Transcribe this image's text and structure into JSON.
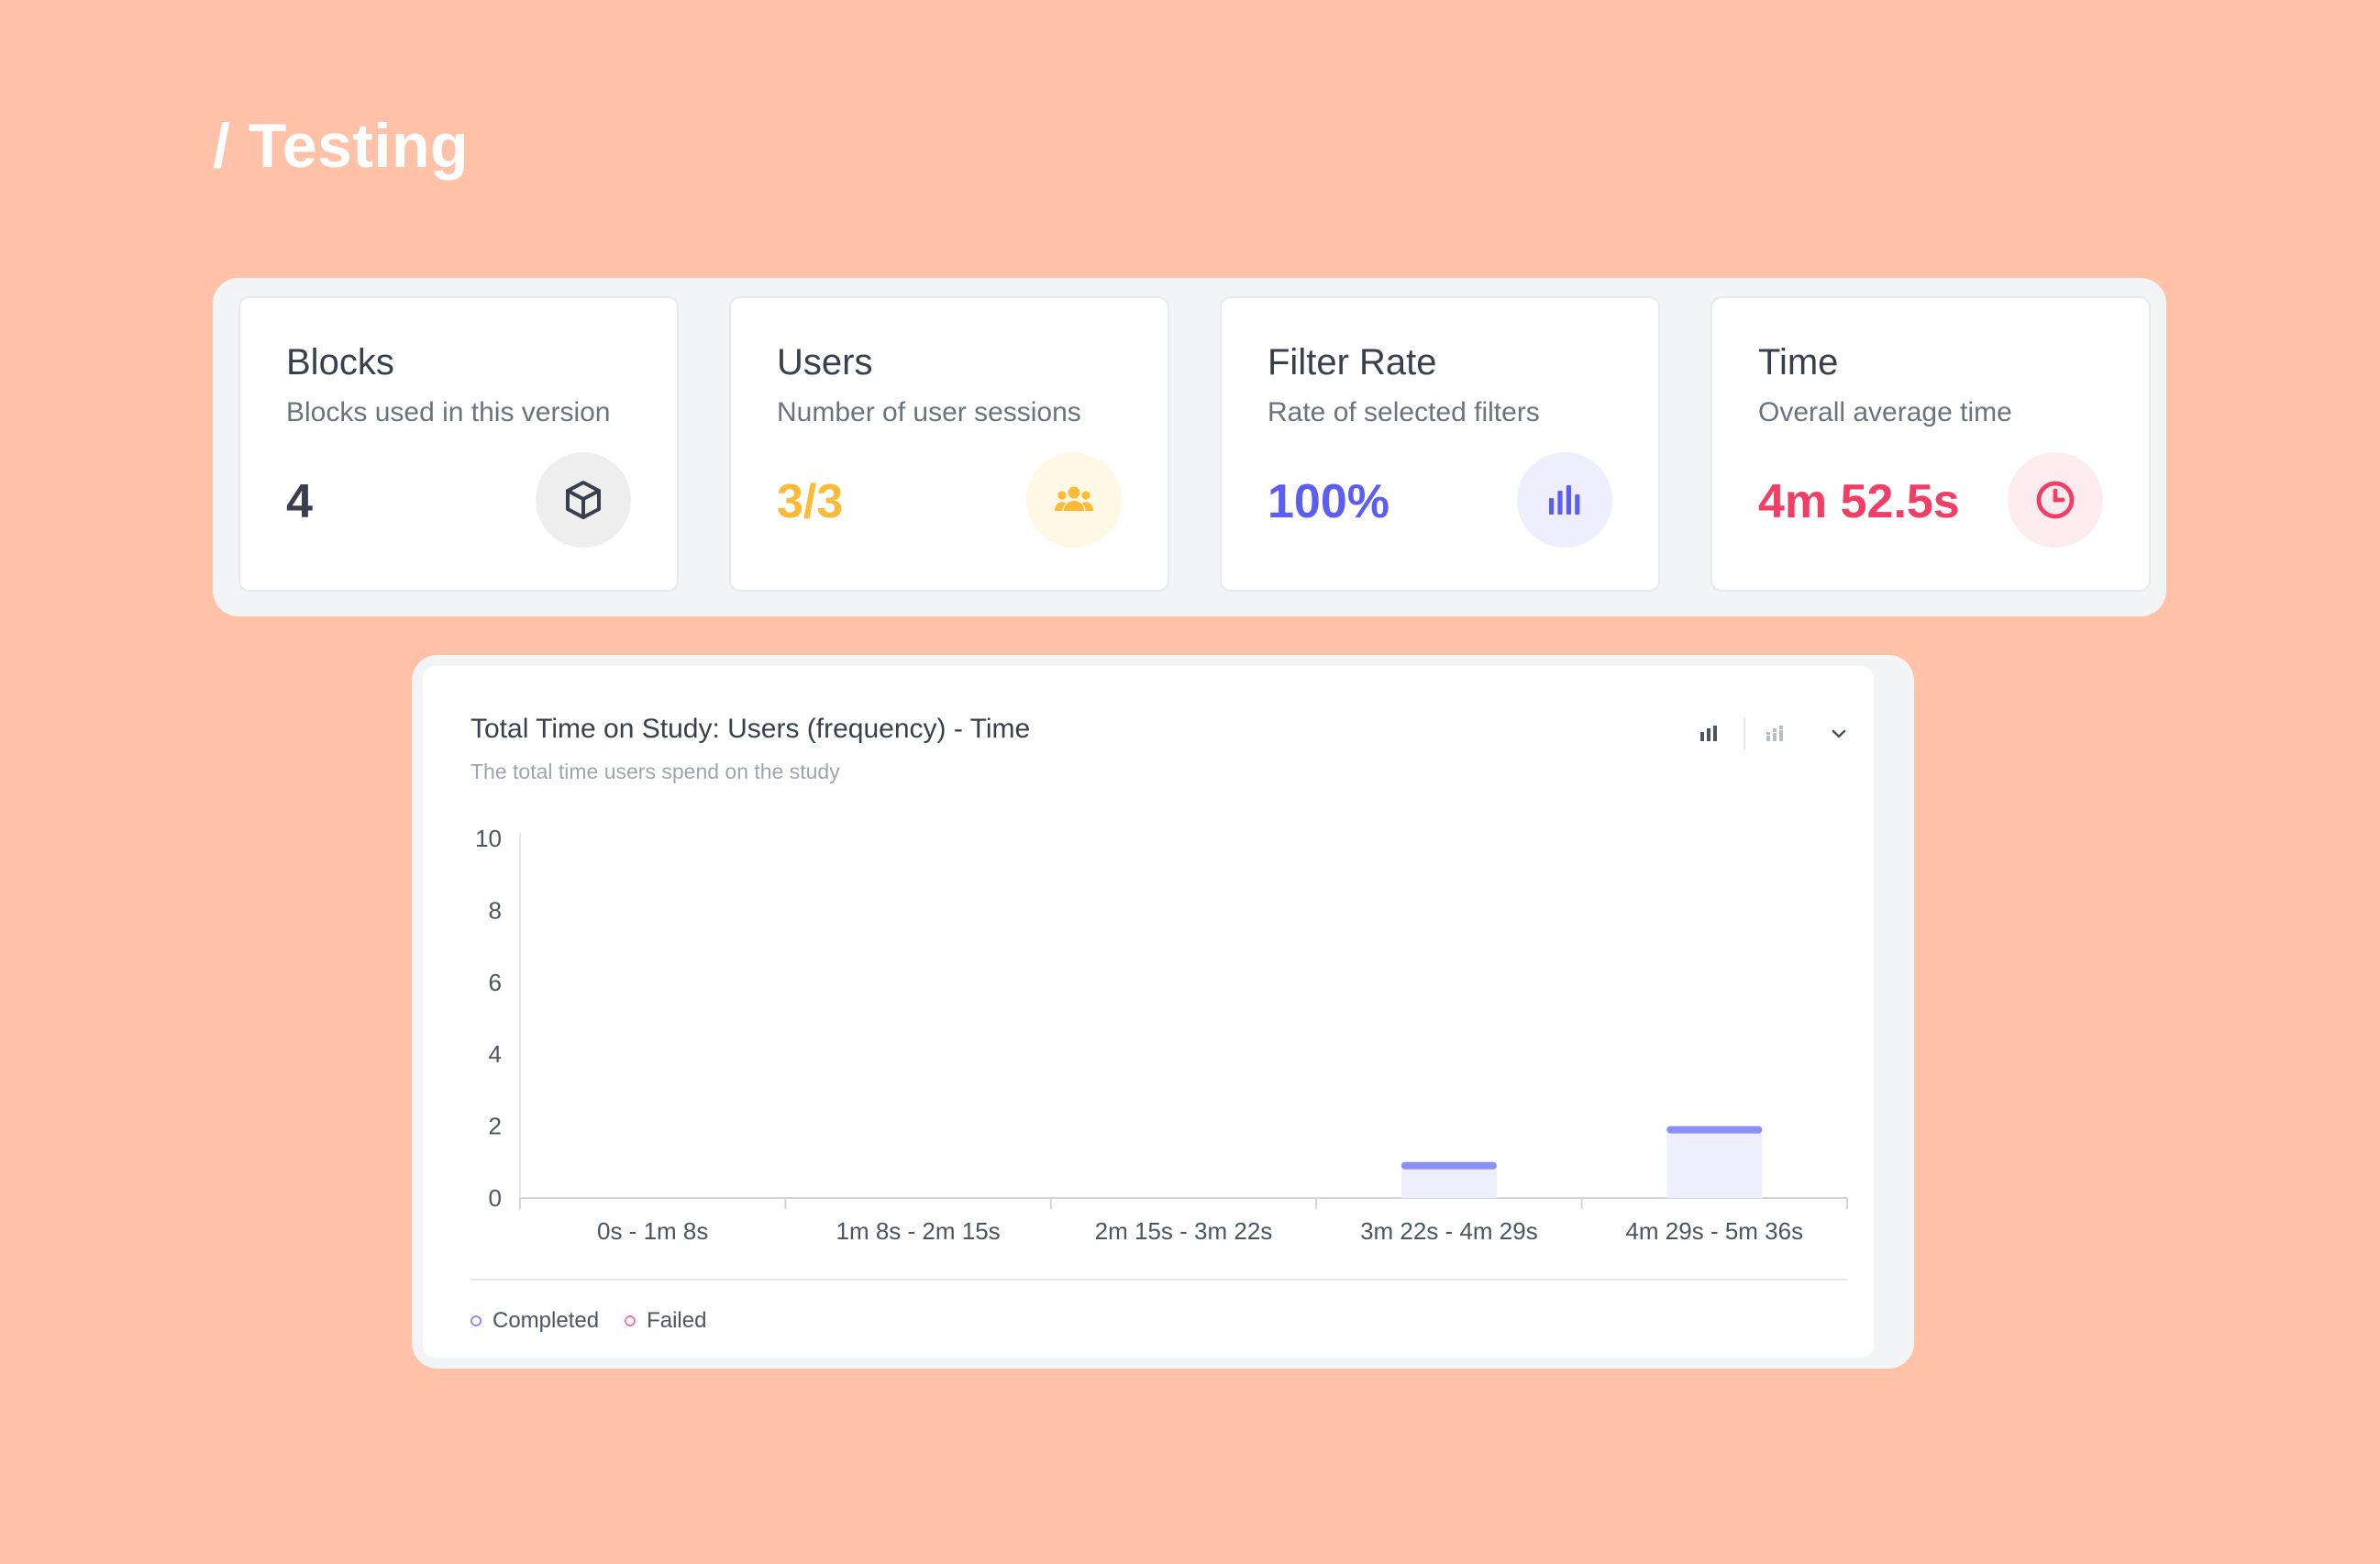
{
  "page": {
    "title": "/ Testing"
  },
  "stats": [
    {
      "title": "Blocks",
      "subtitle": "Blocks used in this version",
      "value": "4",
      "icon": "cube-icon",
      "value_color": "#3A3F4E",
      "icon_bg": "#EEEEEF",
      "icon_color": "#3A3F4E"
    },
    {
      "title": "Users",
      "subtitle": "Number of user sessions",
      "value": "3/3",
      "icon": "users-icon",
      "value_color": "#FBBA38",
      "icon_bg": "#FFF8E5",
      "icon_color": "#FBBA38"
    },
    {
      "title": "Filter Rate",
      "subtitle": "Rate of selected filters",
      "value": "100%",
      "icon": "bar-chart-icon",
      "value_color": "#5B5EF0",
      "icon_bg": "#EEEEFD",
      "icon_color": "#5B5EF0"
    },
    {
      "title": "Time",
      "subtitle": "Overall average time",
      "value": "4m 52.5s",
      "icon": "clock-icon",
      "value_color": "#F03E66",
      "icon_bg": "#FDECEF",
      "icon_color": "#F03E66"
    }
  ],
  "chart_panel": {
    "title": "Total Time on Study: Users (frequency) - Time",
    "subtitle": "The total time users spend on the study",
    "tools": [
      "bar-chart-icon",
      "stacked-bar-icon",
      "chevron-down-icon"
    ]
  },
  "chart_data": {
    "type": "bar",
    "categories": [
      "0s - 1m 8s",
      "1m 8s - 2m 15s",
      "2m 15s - 3m 22s",
      "3m 22s - 4m 29s",
      "4m 29s - 5m 36s"
    ],
    "series": [
      {
        "name": "Completed",
        "values": [
          0,
          0,
          0,
          1,
          2
        ],
        "color": "#8C8FF5",
        "fill": "#EEEEFD"
      },
      {
        "name": "Failed",
        "values": [
          0,
          0,
          0,
          0,
          0
        ],
        "color": "#F47A98"
      }
    ],
    "yticks": [
      0,
      2,
      4,
      6,
      8,
      10
    ],
    "ylim": [
      0,
      10
    ],
    "legend": "bottom-left",
    "grid": false
  }
}
